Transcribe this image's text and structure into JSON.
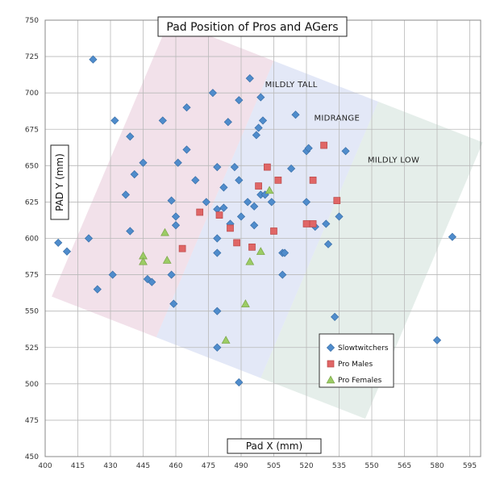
{
  "chart_data": {
    "type": "scatter",
    "title": "Pad Position of Pros and AGers",
    "xlabel": "Pad X (mm)",
    "ylabel": "PAD Y (mm)",
    "xlim": [
      400,
      600
    ],
    "ylim": [
      450,
      750
    ],
    "x_ticks": [
      400,
      415,
      430,
      445,
      460,
      475,
      490,
      505,
      520,
      535,
      550,
      565,
      580,
      595
    ],
    "y_ticks": [
      450,
      475,
      500,
      525,
      550,
      575,
      600,
      625,
      650,
      675,
      700,
      725,
      750
    ],
    "grid": true,
    "legend_position": "bottom-right",
    "bands": [
      {
        "label": "MILDLY TALL",
        "color": "#e7c9d8",
        "corners": [
          [
            403,
            560
          ],
          [
            455,
            750
          ],
          [
            542,
            690
          ],
          [
            422,
            450
          ]
        ],
        "label_at": [
          513,
          704
        ]
      },
      {
        "label": "MIDRANGE",
        "color": "#ccd6f0",
        "corners": [
          [
            403,
            560
          ],
          [
            422,
            450
          ],
          [
            542,
            690
          ],
          [
            403,
            560
          ]
        ],
        "label_at": [
          534,
          681
        ]
      },
      {
        "label": "MILDLY LOW",
        "color": "#cfe0d8",
        "corners": [
          [
            410,
            510
          ],
          [
            425,
            470
          ],
          [
            562,
            655
          ],
          [
            545,
            690
          ]
        ],
        "label_at": [
          560,
          652
        ]
      }
    ],
    "series": [
      {
        "name": "Slowtwitchers",
        "marker": "diamond",
        "color": "#4f8ccc",
        "points": [
          [
            406,
            597
          ],
          [
            410,
            591
          ],
          [
            420,
            600
          ],
          [
            422,
            723
          ],
          [
            424,
            565
          ],
          [
            431,
            575
          ],
          [
            432,
            681
          ],
          [
            437,
            630
          ],
          [
            439,
            605
          ],
          [
            439,
            670
          ],
          [
            441,
            644
          ],
          [
            445,
            652
          ],
          [
            447,
            572
          ],
          [
            449,
            570
          ],
          [
            454,
            681
          ],
          [
            458,
            626
          ],
          [
            458,
            575
          ],
          [
            459,
            555
          ],
          [
            460,
            615
          ],
          [
            460,
            609
          ],
          [
            461,
            652
          ],
          [
            465,
            690
          ],
          [
            465,
            661
          ],
          [
            469,
            640
          ],
          [
            474,
            625
          ],
          [
            477,
            700
          ],
          [
            479,
            649
          ],
          [
            479,
            620
          ],
          [
            479,
            600
          ],
          [
            479,
            590
          ],
          [
            479,
            550
          ],
          [
            479,
            525
          ],
          [
            482,
            621
          ],
          [
            482,
            635
          ],
          [
            484,
            680
          ],
          [
            485,
            610
          ],
          [
            487,
            649
          ],
          [
            489,
            695
          ],
          [
            489,
            640
          ],
          [
            490,
            615
          ],
          [
            489,
            501
          ],
          [
            493,
            625
          ],
          [
            494,
            710
          ],
          [
            496,
            622
          ],
          [
            496,
            609
          ],
          [
            497,
            671
          ],
          [
            498,
            676
          ],
          [
            499,
            697
          ],
          [
            499,
            630
          ],
          [
            500,
            681
          ],
          [
            501,
            630
          ],
          [
            504,
            625
          ],
          [
            509,
            590
          ],
          [
            509,
            575
          ],
          [
            510,
            590
          ],
          [
            513,
            648
          ],
          [
            515,
            685
          ],
          [
            520,
            660
          ],
          [
            520,
            625
          ],
          [
            521,
            662
          ],
          [
            524,
            608
          ],
          [
            529,
            610
          ],
          [
            530,
            596
          ],
          [
            533,
            546
          ],
          [
            535,
            615
          ],
          [
            538,
            660
          ],
          [
            580,
            530
          ],
          [
            587,
            601
          ]
        ]
      },
      {
        "name": "Pro Males",
        "marker": "square",
        "color": "#e06666",
        "points": [
          [
            463,
            593
          ],
          [
            471,
            618
          ],
          [
            480,
            616
          ],
          [
            485,
            607
          ],
          [
            488,
            597
          ],
          [
            498,
            636
          ],
          [
            502,
            649
          ],
          [
            505,
            605
          ],
          [
            507,
            640
          ],
          [
            520,
            610
          ],
          [
            523,
            640
          ],
          [
            523,
            610
          ],
          [
            528,
            664
          ],
          [
            534,
            626
          ],
          [
            495,
            594
          ]
        ]
      },
      {
        "name": "Pro Females",
        "marker": "triangle",
        "color": "#9ccc65",
        "points": [
          [
            445,
            588
          ],
          [
            445,
            584
          ],
          [
            455,
            604
          ],
          [
            456,
            585
          ],
          [
            483,
            530
          ],
          [
            492,
            555
          ],
          [
            494,
            584
          ],
          [
            499,
            591
          ],
          [
            503,
            633
          ]
        ]
      }
    ]
  }
}
